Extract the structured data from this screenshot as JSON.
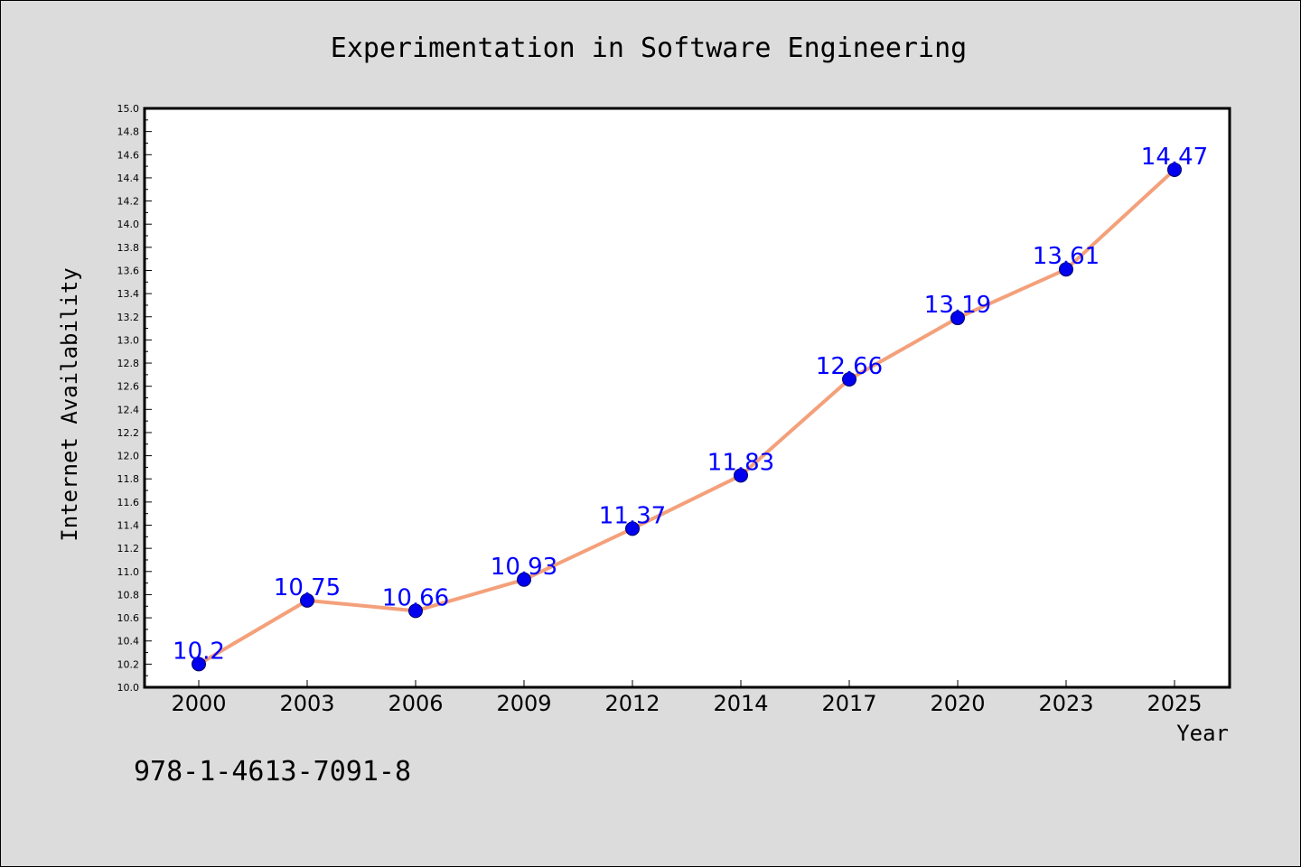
{
  "chart_data": {
    "type": "line",
    "title": "Experimentation in Software Engineering",
    "xlabel": "Year",
    "ylabel": "Internet Availability",
    "categories": [
      "2000",
      "2003",
      "2006",
      "2009",
      "2012",
      "2014",
      "2017",
      "2020",
      "2023",
      "2025"
    ],
    "values": [
      10.2,
      10.75,
      10.66,
      10.93,
      11.37,
      11.83,
      12.66,
      13.19,
      13.61,
      14.47
    ],
    "data_labels": [
      "10.2",
      "10.75",
      "10.66",
      "10.93",
      "11.37",
      "11.83",
      "12.66",
      "13.19",
      "13.61",
      "14.47"
    ],
    "ylim": [
      10.0,
      15.0
    ],
    "yticks": [
      "10.0",
      "10.2",
      "10.4",
      "10.6",
      "10.8",
      "11.0",
      "11.2",
      "11.4",
      "11.6",
      "11.8",
      "12.0",
      "12.2",
      "12.4",
      "12.6",
      "12.8",
      "13.0",
      "13.2",
      "13.4",
      "13.6",
      "13.8",
      "14.0",
      "14.2",
      "14.4",
      "14.6",
      "14.8",
      "15.0"
    ],
    "grid": false,
    "legend": "none",
    "colors": {
      "line": "#f4a07a",
      "marker": "#0000ee",
      "marker_edge": "#000066",
      "data_label": "#0000ff",
      "figure_bg": "#dcdcdc",
      "plot_bg": "#ffffff"
    }
  },
  "footer": {
    "isbn": "978-1-4613-7091-8"
  }
}
